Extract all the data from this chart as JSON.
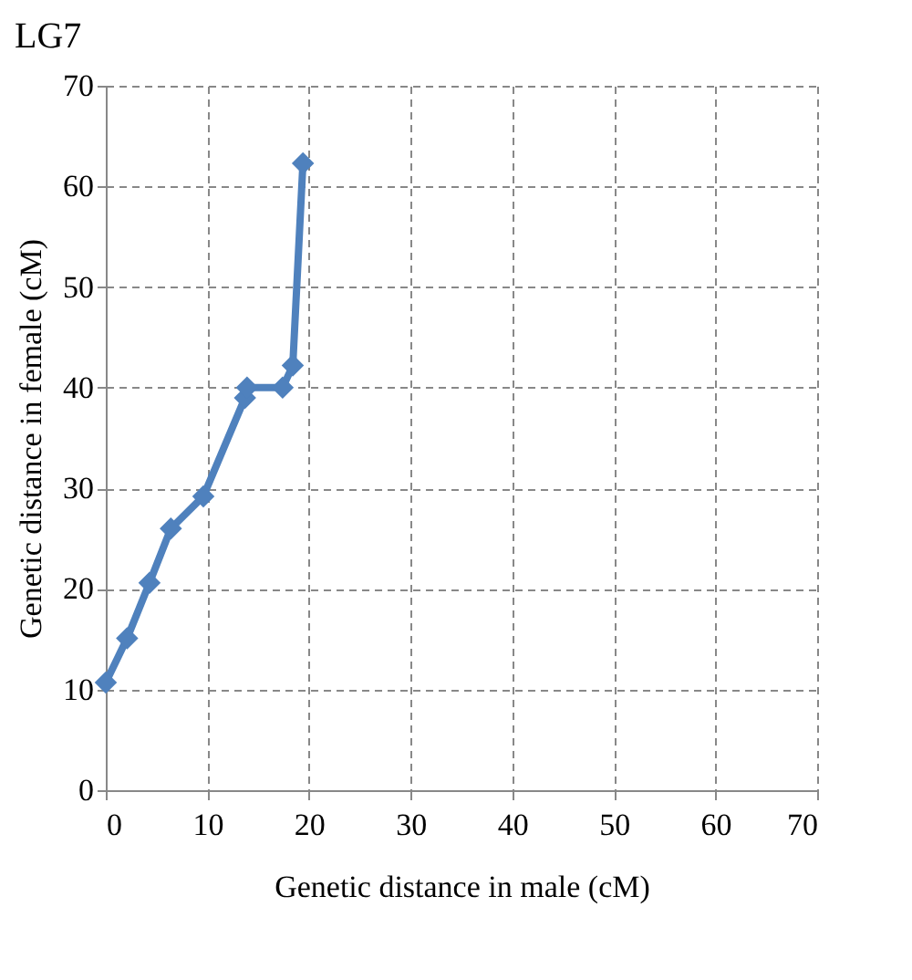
{
  "chart_data": {
    "type": "line",
    "title": "LG7",
    "xlabel": "Genetic distance in male (cM)",
    "ylabel": "Genetic distance in female (cM)",
    "x": [
      0,
      2.1,
      4.3,
      6.4,
      9.6,
      13.7,
      13.9,
      17.4,
      18.4,
      19.4
    ],
    "series": [
      {
        "color": "#4f81bd",
        "values": [
          10.7,
          15.1,
          20.6,
          26.0,
          29.2,
          39.0,
          40.0,
          40.0,
          42.2,
          62.3
        ]
      }
    ],
    "xlim": [
      0,
      70
    ],
    "xticks": [
      0,
      10,
      20,
      30,
      40,
      50,
      60,
      70
    ],
    "ylim": [
      0,
      70
    ],
    "yticks": [
      0,
      10,
      20,
      30,
      40,
      50,
      60,
      70
    ],
    "grid": true,
    "marker": "diamond",
    "line_style": "solid"
  }
}
